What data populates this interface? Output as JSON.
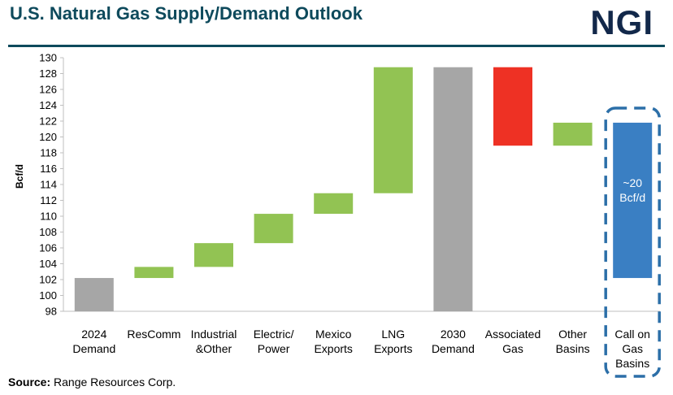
{
  "header": {
    "title": "U.S. Natural Gas Supply/Demand Outlook",
    "logo_text": "NGI"
  },
  "footer": {
    "source_label": "Source:",
    "source_text": "Range Resources Corp."
  },
  "colors": {
    "total": "#a6a6a6",
    "increase": "#92c353",
    "decrease": "#ee3124",
    "call": "#3a7fc3",
    "highlight_border": "#2c6fa8",
    "title": "#0e4a5c"
  },
  "chart_data": {
    "type": "bar",
    "subtype": "waterfall",
    "ylabel": "Bcf/d",
    "ylim": [
      98,
      130
    ],
    "ytick_step": 2,
    "grid": false,
    "categories": [
      [
        "2024",
        "Demand"
      ],
      [
        "ResComm"
      ],
      [
        "Industrial",
        "&Other"
      ],
      [
        "Electric/",
        "Power"
      ],
      [
        "Mexico",
        "Exports"
      ],
      [
        "LNG",
        "Exports"
      ],
      [
        "2030",
        "Demand"
      ],
      [
        "Associated",
        "Gas"
      ],
      [
        "Other",
        "Basins"
      ],
      [
        "Call on",
        "Gas",
        "Basins"
      ]
    ],
    "bars": [
      {
        "base": 98,
        "top": 102.2,
        "kind": "total"
      },
      {
        "base": 102.2,
        "top": 103.6,
        "kind": "increase"
      },
      {
        "base": 103.6,
        "top": 106.6,
        "kind": "increase"
      },
      {
        "base": 106.6,
        "top": 110.3,
        "kind": "increase"
      },
      {
        "base": 110.3,
        "top": 112.9,
        "kind": "increase"
      },
      {
        "base": 112.9,
        "top": 128.8,
        "kind": "increase"
      },
      {
        "base": 98,
        "top": 128.8,
        "kind": "total"
      },
      {
        "base": 118.9,
        "top": 128.8,
        "kind": "decrease"
      },
      {
        "base": 118.9,
        "top": 121.8,
        "kind": "increase"
      },
      {
        "base": 102.2,
        "top": 121.8,
        "kind": "call"
      }
    ],
    "annotation": {
      "bar_index": 9,
      "lines": [
        "~20",
        "Bcf/d"
      ]
    },
    "highlight_index": 9
  }
}
